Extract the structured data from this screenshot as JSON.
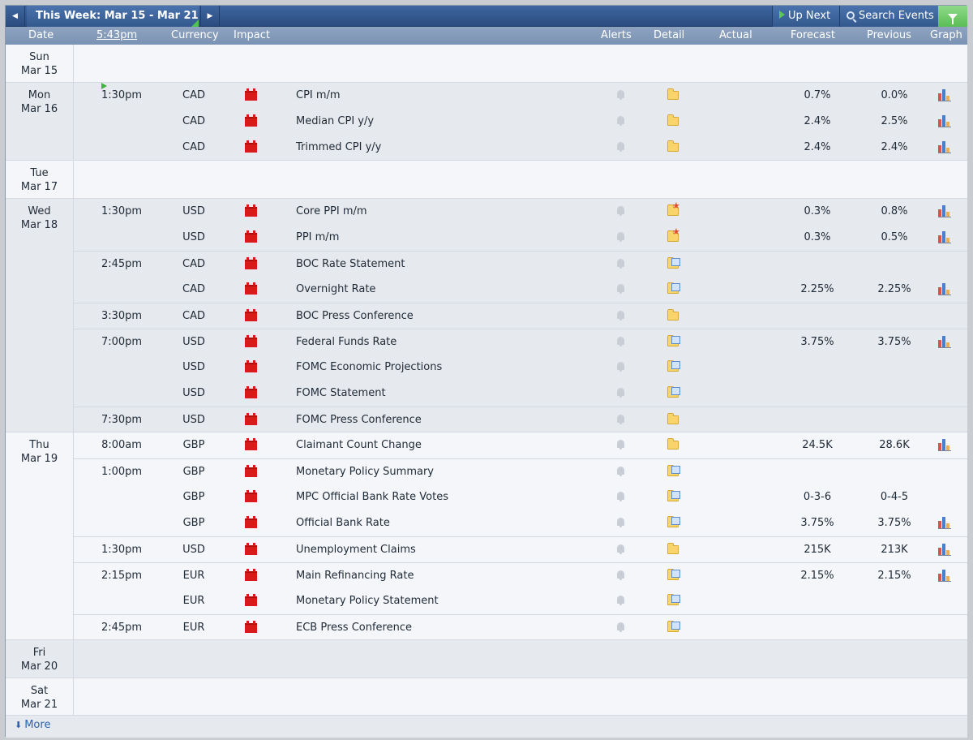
{
  "navbar": {
    "week_title": "This Week: Mar 15 - Mar 21",
    "up_next": "Up Next",
    "search_events": "Search Events"
  },
  "header": {
    "date": "Date",
    "time": "5:43pm",
    "currency": "Currency",
    "impact": "Impact",
    "alerts": "Alerts",
    "detail": "Detail",
    "actual": "Actual",
    "forecast": "Forecast",
    "previous": "Previous",
    "graph": "Graph"
  },
  "days": [
    {
      "dow": "Sun",
      "date": "Mar 15",
      "events": []
    },
    {
      "dow": "Mon",
      "date": "Mar 16",
      "events": [
        {
          "time": "1:30pm",
          "now": true,
          "currency": "CAD",
          "name": "CPI m/m",
          "detail": "plain",
          "forecast": "0.7%",
          "previous": "0.0%",
          "graph": true
        },
        {
          "time": "",
          "currency": "CAD",
          "name": "Median CPI y/y",
          "detail": "plain",
          "forecast": "2.4%",
          "previous": "2.5%",
          "graph": true
        },
        {
          "time": "",
          "currency": "CAD",
          "name": "Trimmed CPI y/y",
          "detail": "plain",
          "forecast": "2.4%",
          "previous": "2.4%",
          "graph": true
        }
      ]
    },
    {
      "dow": "Tue",
      "date": "Mar 17",
      "events": []
    },
    {
      "dow": "Wed",
      "date": "Mar 18",
      "events": [
        {
          "time": "1:30pm",
          "currency": "USD",
          "name": "Core PPI m/m",
          "detail": "star",
          "forecast": "0.3%",
          "previous": "0.8%",
          "graph": true
        },
        {
          "time": "",
          "currency": "USD",
          "name": "PPI m/m",
          "detail": "star",
          "forecast": "0.3%",
          "previous": "0.5%",
          "graph": true
        },
        {
          "time": "2:45pm",
          "currency": "CAD",
          "name": "BOC Rate Statement",
          "detail": "doc",
          "forecast": "",
          "previous": "",
          "graph": false
        },
        {
          "time": "",
          "currency": "CAD",
          "name": "Overnight Rate",
          "detail": "doc",
          "forecast": "2.25%",
          "previous": "2.25%",
          "graph": true
        },
        {
          "time": "3:30pm",
          "currency": "CAD",
          "name": "BOC Press Conference",
          "detail": "plain",
          "forecast": "",
          "previous": "",
          "graph": false
        },
        {
          "time": "7:00pm",
          "currency": "USD",
          "name": "Federal Funds Rate",
          "detail": "doc",
          "forecast": "3.75%",
          "previous": "3.75%",
          "graph": true
        },
        {
          "time": "",
          "currency": "USD",
          "name": "FOMC Economic Projections",
          "detail": "doc",
          "forecast": "",
          "previous": "",
          "graph": false
        },
        {
          "time": "",
          "currency": "USD",
          "name": "FOMC Statement",
          "detail": "doc",
          "forecast": "",
          "previous": "",
          "graph": false
        },
        {
          "time": "7:30pm",
          "currency": "USD",
          "name": "FOMC Press Conference",
          "detail": "plain",
          "forecast": "",
          "previous": "",
          "graph": false
        }
      ]
    },
    {
      "dow": "Thu",
      "date": "Mar 19",
      "events": [
        {
          "time": "8:00am",
          "currency": "GBP",
          "name": "Claimant Count Change",
          "detail": "plain",
          "forecast": "24.5K",
          "previous": "28.6K",
          "graph": true
        },
        {
          "time": "1:00pm",
          "currency": "GBP",
          "name": "Monetary Policy Summary",
          "detail": "doc",
          "forecast": "",
          "previous": "",
          "graph": false
        },
        {
          "time": "",
          "currency": "GBP",
          "name": "MPC Official Bank Rate Votes",
          "detail": "doc",
          "forecast": "0-3-6",
          "previous": "0-4-5",
          "graph": false
        },
        {
          "time": "",
          "currency": "GBP",
          "name": "Official Bank Rate",
          "detail": "doc",
          "forecast": "3.75%",
          "previous": "3.75%",
          "graph": true
        },
        {
          "time": "1:30pm",
          "currency": "USD",
          "name": "Unemployment Claims",
          "detail": "plain",
          "forecast": "215K",
          "previous": "213K",
          "graph": true
        },
        {
          "time": "2:15pm",
          "currency": "EUR",
          "name": "Main Refinancing Rate",
          "detail": "doc",
          "forecast": "2.15%",
          "previous": "2.15%",
          "graph": true
        },
        {
          "time": "",
          "currency": "EUR",
          "name": "Monetary Policy Statement",
          "detail": "doc",
          "forecast": "",
          "previous": "",
          "graph": false
        },
        {
          "time": "2:45pm",
          "currency": "EUR",
          "name": "ECB Press Conference",
          "detail": "doc",
          "forecast": "",
          "previous": "",
          "graph": false
        }
      ]
    },
    {
      "dow": "Fri",
      "date": "Mar 20",
      "events": []
    },
    {
      "dow": "Sat",
      "date": "Mar 21",
      "events": []
    }
  ],
  "footer": {
    "more": "More"
  }
}
